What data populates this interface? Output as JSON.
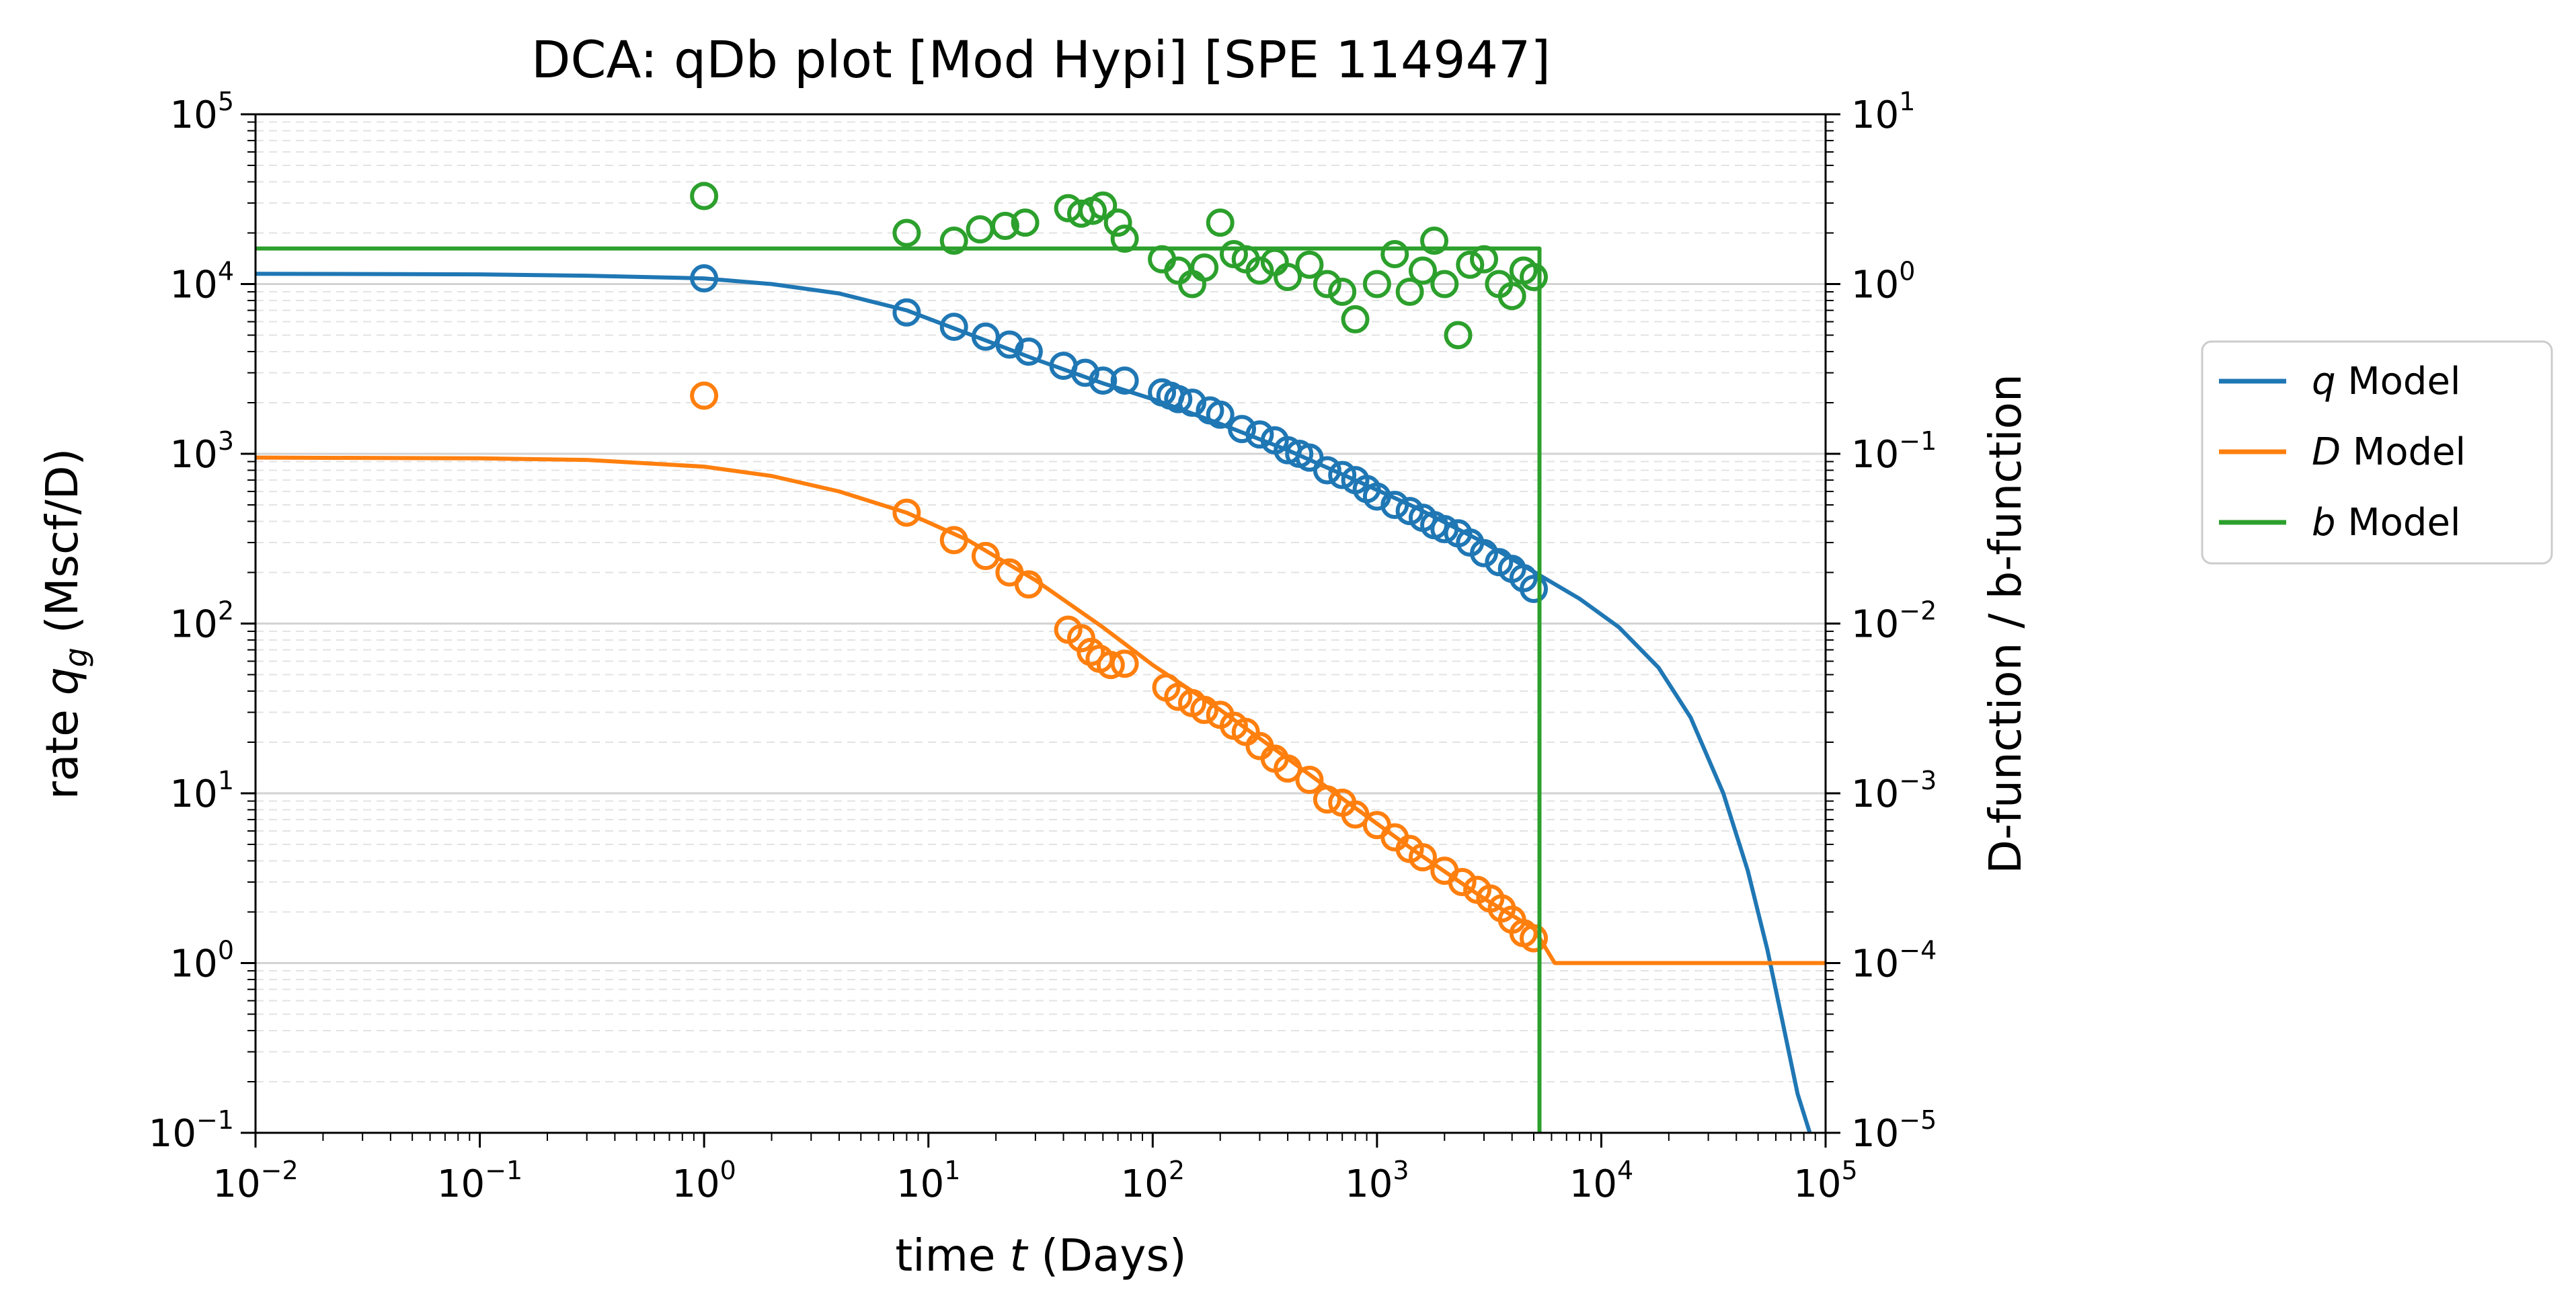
{
  "chart_data": {
    "type": "scatter",
    "title": "DCA: qDb plot  [Mod Hypi]  [SPE 114947]",
    "xlabel": {
      "pre": "time ",
      "var": "t",
      "post": " (Days)"
    },
    "ylabel": {
      "pre": "rate ",
      "var": "q",
      "sub": "g",
      "post": " (Mscf/D)"
    },
    "y2label": "D-function / b-function",
    "x_scale": "log",
    "y_scale": "log",
    "y2_scale": "log",
    "xlim": [
      0.01,
      100000
    ],
    "ylim": [
      0.1,
      100000
    ],
    "y2lim": [
      1e-05,
      10
    ],
    "x_ticks": [
      {
        "b": "10",
        "e": "−2"
      },
      {
        "b": "10",
        "e": "−1"
      },
      {
        "b": "10",
        "e": "0"
      },
      {
        "b": "10",
        "e": "1"
      },
      {
        "b": "10",
        "e": "2"
      },
      {
        "b": "10",
        "e": "3"
      },
      {
        "b": "10",
        "e": "4"
      },
      {
        "b": "10",
        "e": "5"
      }
    ],
    "y_ticks": [
      {
        "b": "10",
        "e": "−1"
      },
      {
        "b": "10",
        "e": "0"
      },
      {
        "b": "10",
        "e": "1"
      },
      {
        "b": "10",
        "e": "2"
      },
      {
        "b": "10",
        "e": "3"
      },
      {
        "b": "10",
        "e": "4"
      },
      {
        "b": "10",
        "e": "5"
      }
    ],
    "y2_ticks": [
      {
        "b": "10",
        "e": "−5"
      },
      {
        "b": "10",
        "e": "−4"
      },
      {
        "b": "10",
        "e": "−3"
      },
      {
        "b": "10",
        "e": "−2"
      },
      {
        "b": "10",
        "e": "−1"
      },
      {
        "b": "10",
        "e": "0"
      },
      {
        "b": "10",
        "e": "1"
      }
    ],
    "grid": "major solid, minor dashed",
    "legend_position": "outside right",
    "legend": [
      {
        "var": "q",
        "text": " Model",
        "color": "#1f77b4"
      },
      {
        "var": "D",
        "text": " Model",
        "color": "#ff7f0e"
      },
      {
        "var": "b",
        "text": " Model",
        "color": "#2ca02c"
      }
    ],
    "series": [
      {
        "name": "q Model",
        "axis": "left",
        "color": "#1f77b4",
        "kind": "line",
        "x": [
          0.01,
          0.1,
          0.3,
          1,
          2,
          4,
          8,
          15,
          30,
          60,
          100,
          200,
          400,
          800,
          1500,
          3000,
          5400,
          8000,
          12000,
          18000,
          25000,
          35000,
          45000,
          55000,
          65000,
          75000,
          85000
        ],
        "y": [
          11500,
          11400,
          11200,
          10800,
          10000,
          8800,
          7000,
          5100,
          3600,
          2600,
          2100,
          1500,
          1050,
          700,
          480,
          300,
          190,
          140,
          95,
          55,
          28,
          10,
          3.5,
          1.2,
          0.42,
          0.17,
          0.1
        ]
      },
      {
        "name": "q data",
        "axis": "left",
        "color": "#1f77b4",
        "kind": "markers",
        "x": [
          1,
          8,
          13,
          18,
          23,
          28,
          40,
          50,
          60,
          75,
          110,
          120,
          130,
          150,
          180,
          200,
          250,
          300,
          350,
          400,
          450,
          500,
          600,
          700,
          800,
          900,
          1000,
          1200,
          1400,
          1600,
          1800,
          2000,
          2300,
          2600,
          3000,
          3500,
          4000,
          4500,
          5000
        ],
        "y": [
          10800,
          6800,
          5600,
          4900,
          4400,
          4000,
          3300,
          3000,
          2700,
          2700,
          2300,
          2200,
          2100,
          2000,
          1800,
          1700,
          1400,
          1300,
          1200,
          1050,
          1000,
          950,
          800,
          750,
          700,
          620,
          560,
          500,
          460,
          420,
          380,
          360,
          340,
          300,
          260,
          230,
          210,
          185,
          160
        ]
      },
      {
        "name": "D Model",
        "axis": "right",
        "color": "#ff7f0e",
        "kind": "line",
        "x": [
          0.01,
          0.1,
          0.3,
          1,
          2,
          4,
          8,
          15,
          30,
          60,
          100,
          200,
          400,
          800,
          1500,
          3000,
          5000,
          6200,
          100000
        ],
        "y": [
          0.095,
          0.094,
          0.092,
          0.084,
          0.074,
          0.06,
          0.045,
          0.031,
          0.018,
          0.0095,
          0.0057,
          0.0031,
          0.0016,
          0.00082,
          0.00045,
          0.00024,
          0.00016,
          0.0001,
          0.0001
        ]
      },
      {
        "name": "D data",
        "axis": "right",
        "color": "#ff7f0e",
        "kind": "markers",
        "x": [
          1,
          8,
          13,
          18,
          23,
          28,
          42,
          48,
          53,
          58,
          65,
          75,
          115,
          130,
          150,
          170,
          200,
          230,
          260,
          300,
          350,
          400,
          500,
          600,
          700,
          800,
          1000,
          1200,
          1400,
          1600,
          2000,
          2400,
          2800,
          3200,
          3600,
          4000,
          4500,
          5000
        ],
        "y": [
          0.22,
          0.045,
          0.031,
          0.025,
          0.02,
          0.017,
          0.0092,
          0.0082,
          0.0068,
          0.0062,
          0.0057,
          0.0058,
          0.0042,
          0.0037,
          0.0034,
          0.0031,
          0.0029,
          0.0025,
          0.0023,
          0.0019,
          0.0016,
          0.0014,
          0.0012,
          0.00092,
          0.00088,
          0.00075,
          0.00065,
          0.00055,
          0.00047,
          0.00042,
          0.00035,
          0.0003,
          0.00027,
          0.00024,
          0.00021,
          0.00018,
          0.00015,
          0.00014
        ]
      },
      {
        "name": "b Model",
        "axis": "right",
        "color": "#2ca02c",
        "kind": "line",
        "x": [
          0.01,
          80,
          5300,
          5300
        ],
        "y": [
          1.62,
          1.62,
          1.62,
          1e-05
        ]
      },
      {
        "name": "b data",
        "axis": "right",
        "color": "#2ca02c",
        "kind": "markers",
        "x": [
          1,
          8,
          13,
          17,
          22,
          27,
          42,
          48,
          54,
          60,
          70,
          75,
          110,
          130,
          150,
          170,
          200,
          230,
          260,
          300,
          350,
          400,
          500,
          600,
          700,
          800,
          1000,
          1200,
          1400,
          1600,
          1800,
          2000,
          2300,
          2600,
          3000,
          3500,
          4000,
          4500,
          5000
        ],
        "y": [
          3.3,
          2.0,
          1.8,
          2.1,
          2.2,
          2.3,
          2.8,
          2.6,
          2.7,
          2.9,
          2.3,
          1.85,
          1.4,
          1.2,
          1.0,
          1.25,
          2.3,
          1.5,
          1.4,
          1.2,
          1.35,
          1.1,
          1.3,
          1.0,
          0.9,
          0.62,
          1.0,
          1.5,
          0.9,
          1.2,
          1.8,
          1.0,
          0.5,
          1.3,
          1.4,
          1.0,
          0.85,
          1.2,
          1.1
        ]
      }
    ]
  }
}
